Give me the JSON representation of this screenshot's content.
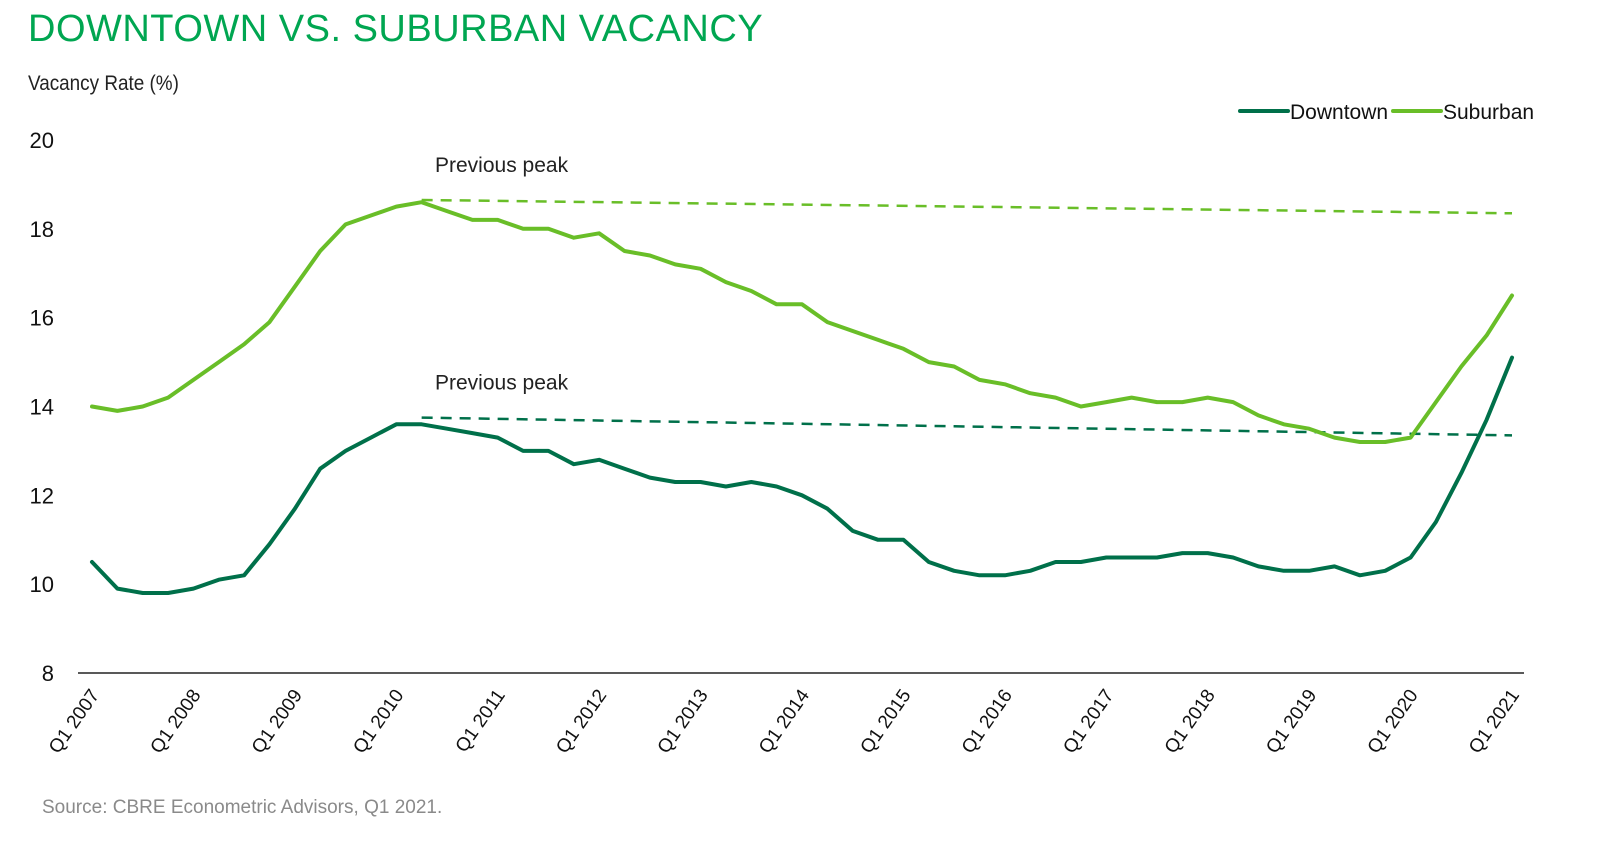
{
  "chart_data": {
    "type": "line",
    "title": "DOWNTOWN VS. SUBURBAN VACANCY",
    "ylabel": "Vacancy Rate (%)",
    "xlabel": "",
    "ylim": [
      8,
      20
    ],
    "yticks": [
      8,
      10,
      12,
      14,
      16,
      18,
      20
    ],
    "xtick_labels": [
      "Q1 2007",
      "Q1 2008",
      "Q1 2009",
      "Q1 2010",
      "Q1 2011",
      "Q1 2012",
      "Q1 2013",
      "Q1 2014",
      "Q1 2015",
      "Q1 2016",
      "Q1 2017",
      "Q1 2018",
      "Q1 2019",
      "Q1 2020",
      "Q1 2021"
    ],
    "grid": false,
    "legend_position": "top-right",
    "series": [
      {
        "name": "Downtown",
        "color": "#00704a",
        "values": [
          10.5,
          9.9,
          9.8,
          9.8,
          9.9,
          10.1,
          10.2,
          10.9,
          11.7,
          12.6,
          13.0,
          13.3,
          13.6,
          13.6,
          13.5,
          13.4,
          13.3,
          13.0,
          13.0,
          12.7,
          12.8,
          12.6,
          12.4,
          12.3,
          12.3,
          12.2,
          12.3,
          12.2,
          12.0,
          11.7,
          11.2,
          11.0,
          11.0,
          10.5,
          10.3,
          10.2,
          10.2,
          10.3,
          10.5,
          10.5,
          10.6,
          10.6,
          10.6,
          10.7,
          10.7,
          10.6,
          10.4,
          10.3,
          10.3,
          10.4,
          10.2,
          10.3,
          10.6,
          11.4,
          12.5,
          13.7,
          15.1
        ]
      },
      {
        "name": "Suburban",
        "color": "#69be28",
        "values": [
          14.0,
          13.9,
          14.0,
          14.2,
          14.6,
          15.0,
          15.4,
          15.9,
          16.7,
          17.5,
          18.1,
          18.3,
          18.5,
          18.6,
          18.4,
          18.2,
          18.2,
          18.0,
          18.0,
          17.8,
          17.9,
          17.5,
          17.4,
          17.2,
          17.1,
          16.8,
          16.6,
          16.3,
          16.3,
          15.9,
          15.7,
          15.5,
          15.3,
          15.0,
          14.9,
          14.6,
          14.5,
          14.3,
          14.2,
          14.0,
          14.1,
          14.2,
          14.1,
          14.1,
          14.2,
          14.1,
          13.8,
          13.6,
          13.5,
          13.3,
          13.2,
          13.2,
          13.3,
          14.1,
          14.9,
          15.6,
          16.5
        ]
      }
    ],
    "annotations": [
      {
        "text": "Previous peak",
        "series": "Suburban",
        "value_start": 18.65,
        "value_end": 18.35,
        "start_index": 13,
        "end_index": 56
      },
      {
        "text": "Previous peak",
        "series": "Downtown",
        "value_start": 13.75,
        "value_end": 13.35,
        "start_index": 13,
        "end_index": 56
      }
    ]
  },
  "source": "Source: CBRE Econometric Advisors, Q1 2021."
}
